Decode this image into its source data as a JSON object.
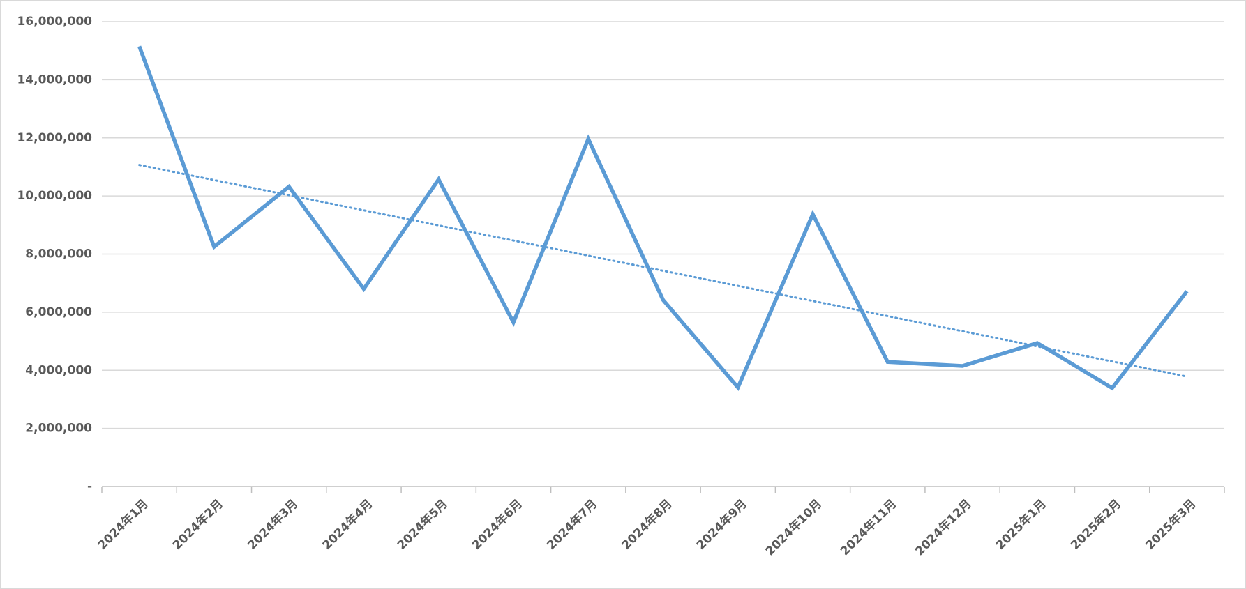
{
  "chart_data": {
    "type": "line",
    "categories": [
      "2024年1月",
      "2024年2月",
      "2024年3月",
      "2024年4月",
      "2024年5月",
      "2024年6月",
      "2024年7月",
      "2024年8月",
      "2024年9月",
      "2024年10月",
      "2024年11月",
      "2024年12月",
      "2025年1月",
      "2025年2月",
      "2025年3月"
    ],
    "series": [
      {
        "color": "#5b9bd5",
        "values": [
          15150000,
          8250000,
          10320000,
          6800000,
          10570000,
          5650000,
          11960000,
          6420000,
          3410000,
          9370000,
          4290000,
          4150000,
          4940000,
          3390000,
          6720000
        ]
      }
    ],
    "trendline": "linear",
    "ylim": [
      0,
      16000000
    ],
    "yticks": [
      {
        "value": 0,
        "label": "-"
      },
      {
        "value": 2000000,
        "label": "2,000,000"
      },
      {
        "value": 4000000,
        "label": "4,000,000"
      },
      {
        "value": 6000000,
        "label": "6,000,000"
      },
      {
        "value": 8000000,
        "label": "8,000,000"
      },
      {
        "value": 10000000,
        "label": "10,000,000"
      },
      {
        "value": 12000000,
        "label": "12,000,000"
      },
      {
        "value": 14000000,
        "label": "14,000,000"
      },
      {
        "value": 16000000,
        "label": "16,000,000"
      }
    ],
    "grid": true
  }
}
